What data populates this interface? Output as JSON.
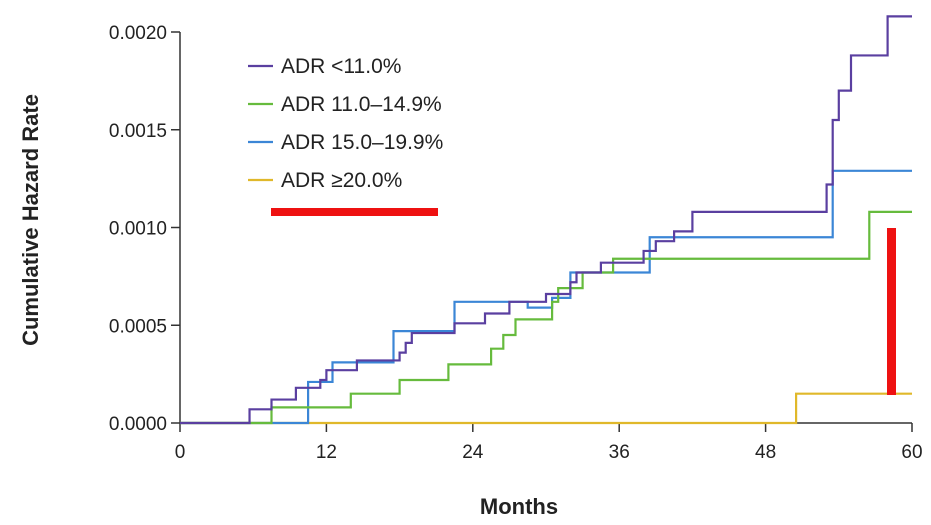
{
  "chart_data": {
    "type": "line",
    "step": true,
    "xlabel": "Months",
    "ylabel": "Cumulative Hazard Rate",
    "xlim": [
      0,
      60
    ],
    "ylim": [
      0,
      0.002
    ],
    "x_ticks": [
      0,
      12,
      24,
      36,
      48,
      60
    ],
    "y_ticks": [
      "0.0000",
      "0.0005",
      "0.0010",
      "0.0015",
      "0.0020"
    ],
    "grid": false,
    "legend_position": "top-left",
    "series": [
      {
        "name": "ADR <11.0%",
        "color": "#5a3fa0",
        "points": [
          [
            0,
            0
          ],
          [
            5.7,
            0
          ],
          [
            5.7,
            7e-05
          ],
          [
            7.5,
            7e-05
          ],
          [
            7.5,
            0.00012
          ],
          [
            9.5,
            0.00012
          ],
          [
            9.5,
            0.00018
          ],
          [
            11.5,
            0.00018
          ],
          [
            11.5,
            0.00022
          ],
          [
            12.0,
            0.00022
          ],
          [
            12.0,
            0.00027
          ],
          [
            14.5,
            0.00027
          ],
          [
            14.5,
            0.00032
          ],
          [
            18.0,
            0.00032
          ],
          [
            18.0,
            0.00036
          ],
          [
            18.5,
            0.00036
          ],
          [
            18.5,
            0.00041
          ],
          [
            19.0,
            0.00041
          ],
          [
            19.0,
            0.00046
          ],
          [
            22.5,
            0.00046
          ],
          [
            22.5,
            0.00051
          ],
          [
            25.0,
            0.00051
          ],
          [
            25.0,
            0.00056
          ],
          [
            27.0,
            0.00056
          ],
          [
            27.0,
            0.00062
          ],
          [
            30.0,
            0.00062
          ],
          [
            30.0,
            0.00066
          ],
          [
            32.0,
            0.00066
          ],
          [
            32.0,
            0.00072
          ],
          [
            32.5,
            0.00072
          ],
          [
            32.5,
            0.00077
          ],
          [
            34.5,
            0.00077
          ],
          [
            34.5,
            0.00082
          ],
          [
            38.0,
            0.00082
          ],
          [
            38.0,
            0.00088
          ],
          [
            39.0,
            0.00088
          ],
          [
            39.0,
            0.00093
          ],
          [
            40.5,
            0.00093
          ],
          [
            40.5,
            0.00098
          ],
          [
            42.0,
            0.00098
          ],
          [
            42.0,
            0.00108
          ],
          [
            53.0,
            0.00108
          ],
          [
            53.0,
            0.00122
          ],
          [
            53.5,
            0.00122
          ],
          [
            53.5,
            0.00155
          ],
          [
            54.0,
            0.00155
          ],
          [
            54.0,
            0.0017
          ],
          [
            55.0,
            0.0017
          ],
          [
            55.0,
            0.00188
          ],
          [
            58.0,
            0.00188
          ],
          [
            58.0,
            0.00208
          ],
          [
            60,
            0.00208
          ]
        ]
      },
      {
        "name": "ADR 11.0–14.9%",
        "color": "#66bb3d",
        "points": [
          [
            0,
            0
          ],
          [
            7.5,
            0
          ],
          [
            7.5,
            8e-05
          ],
          [
            14.0,
            8e-05
          ],
          [
            14.0,
            0.00015
          ],
          [
            18.0,
            0.00015
          ],
          [
            18.0,
            0.00022
          ],
          [
            22.0,
            0.00022
          ],
          [
            22.0,
            0.0003
          ],
          [
            25.5,
            0.0003
          ],
          [
            25.5,
            0.00038
          ],
          [
            26.5,
            0.00038
          ],
          [
            26.5,
            0.00045
          ],
          [
            27.5,
            0.00045
          ],
          [
            27.5,
            0.00053
          ],
          [
            30.5,
            0.00053
          ],
          [
            30.5,
            0.00062
          ],
          [
            31.0,
            0.00062
          ],
          [
            31.0,
            0.00069
          ],
          [
            33.0,
            0.00069
          ],
          [
            33.0,
            0.00077
          ],
          [
            35.5,
            0.00077
          ],
          [
            35.5,
            0.00084
          ],
          [
            56.5,
            0.00084
          ],
          [
            56.5,
            0.00108
          ],
          [
            60,
            0.00108
          ]
        ]
      },
      {
        "name": "ADR 15.0–19.9%",
        "color": "#3b86d6",
        "points": [
          [
            0,
            0
          ],
          [
            10.5,
            0
          ],
          [
            10.5,
            0.00021
          ],
          [
            12.5,
            0.00021
          ],
          [
            12.5,
            0.00031
          ],
          [
            17.5,
            0.00031
          ],
          [
            17.5,
            0.00047
          ],
          [
            22.5,
            0.00047
          ],
          [
            22.5,
            0.00062
          ],
          [
            28.5,
            0.00062
          ],
          [
            28.5,
            0.00059
          ],
          [
            30.5,
            0.00059
          ],
          [
            30.5,
            0.00064
          ],
          [
            32.0,
            0.00064
          ],
          [
            32.0,
            0.00077
          ],
          [
            38.5,
            0.00077
          ],
          [
            38.5,
            0.00095
          ],
          [
            53.5,
            0.00095
          ],
          [
            53.5,
            0.00129
          ],
          [
            60,
            0.00129
          ]
        ]
      },
      {
        "name": "ADR ≥20.0%",
        "color": "#e0b82a",
        "points": [
          [
            0,
            0
          ],
          [
            50.5,
            0
          ],
          [
            50.5,
            0.00015
          ],
          [
            60,
            0.00015
          ]
        ]
      }
    ]
  }
}
